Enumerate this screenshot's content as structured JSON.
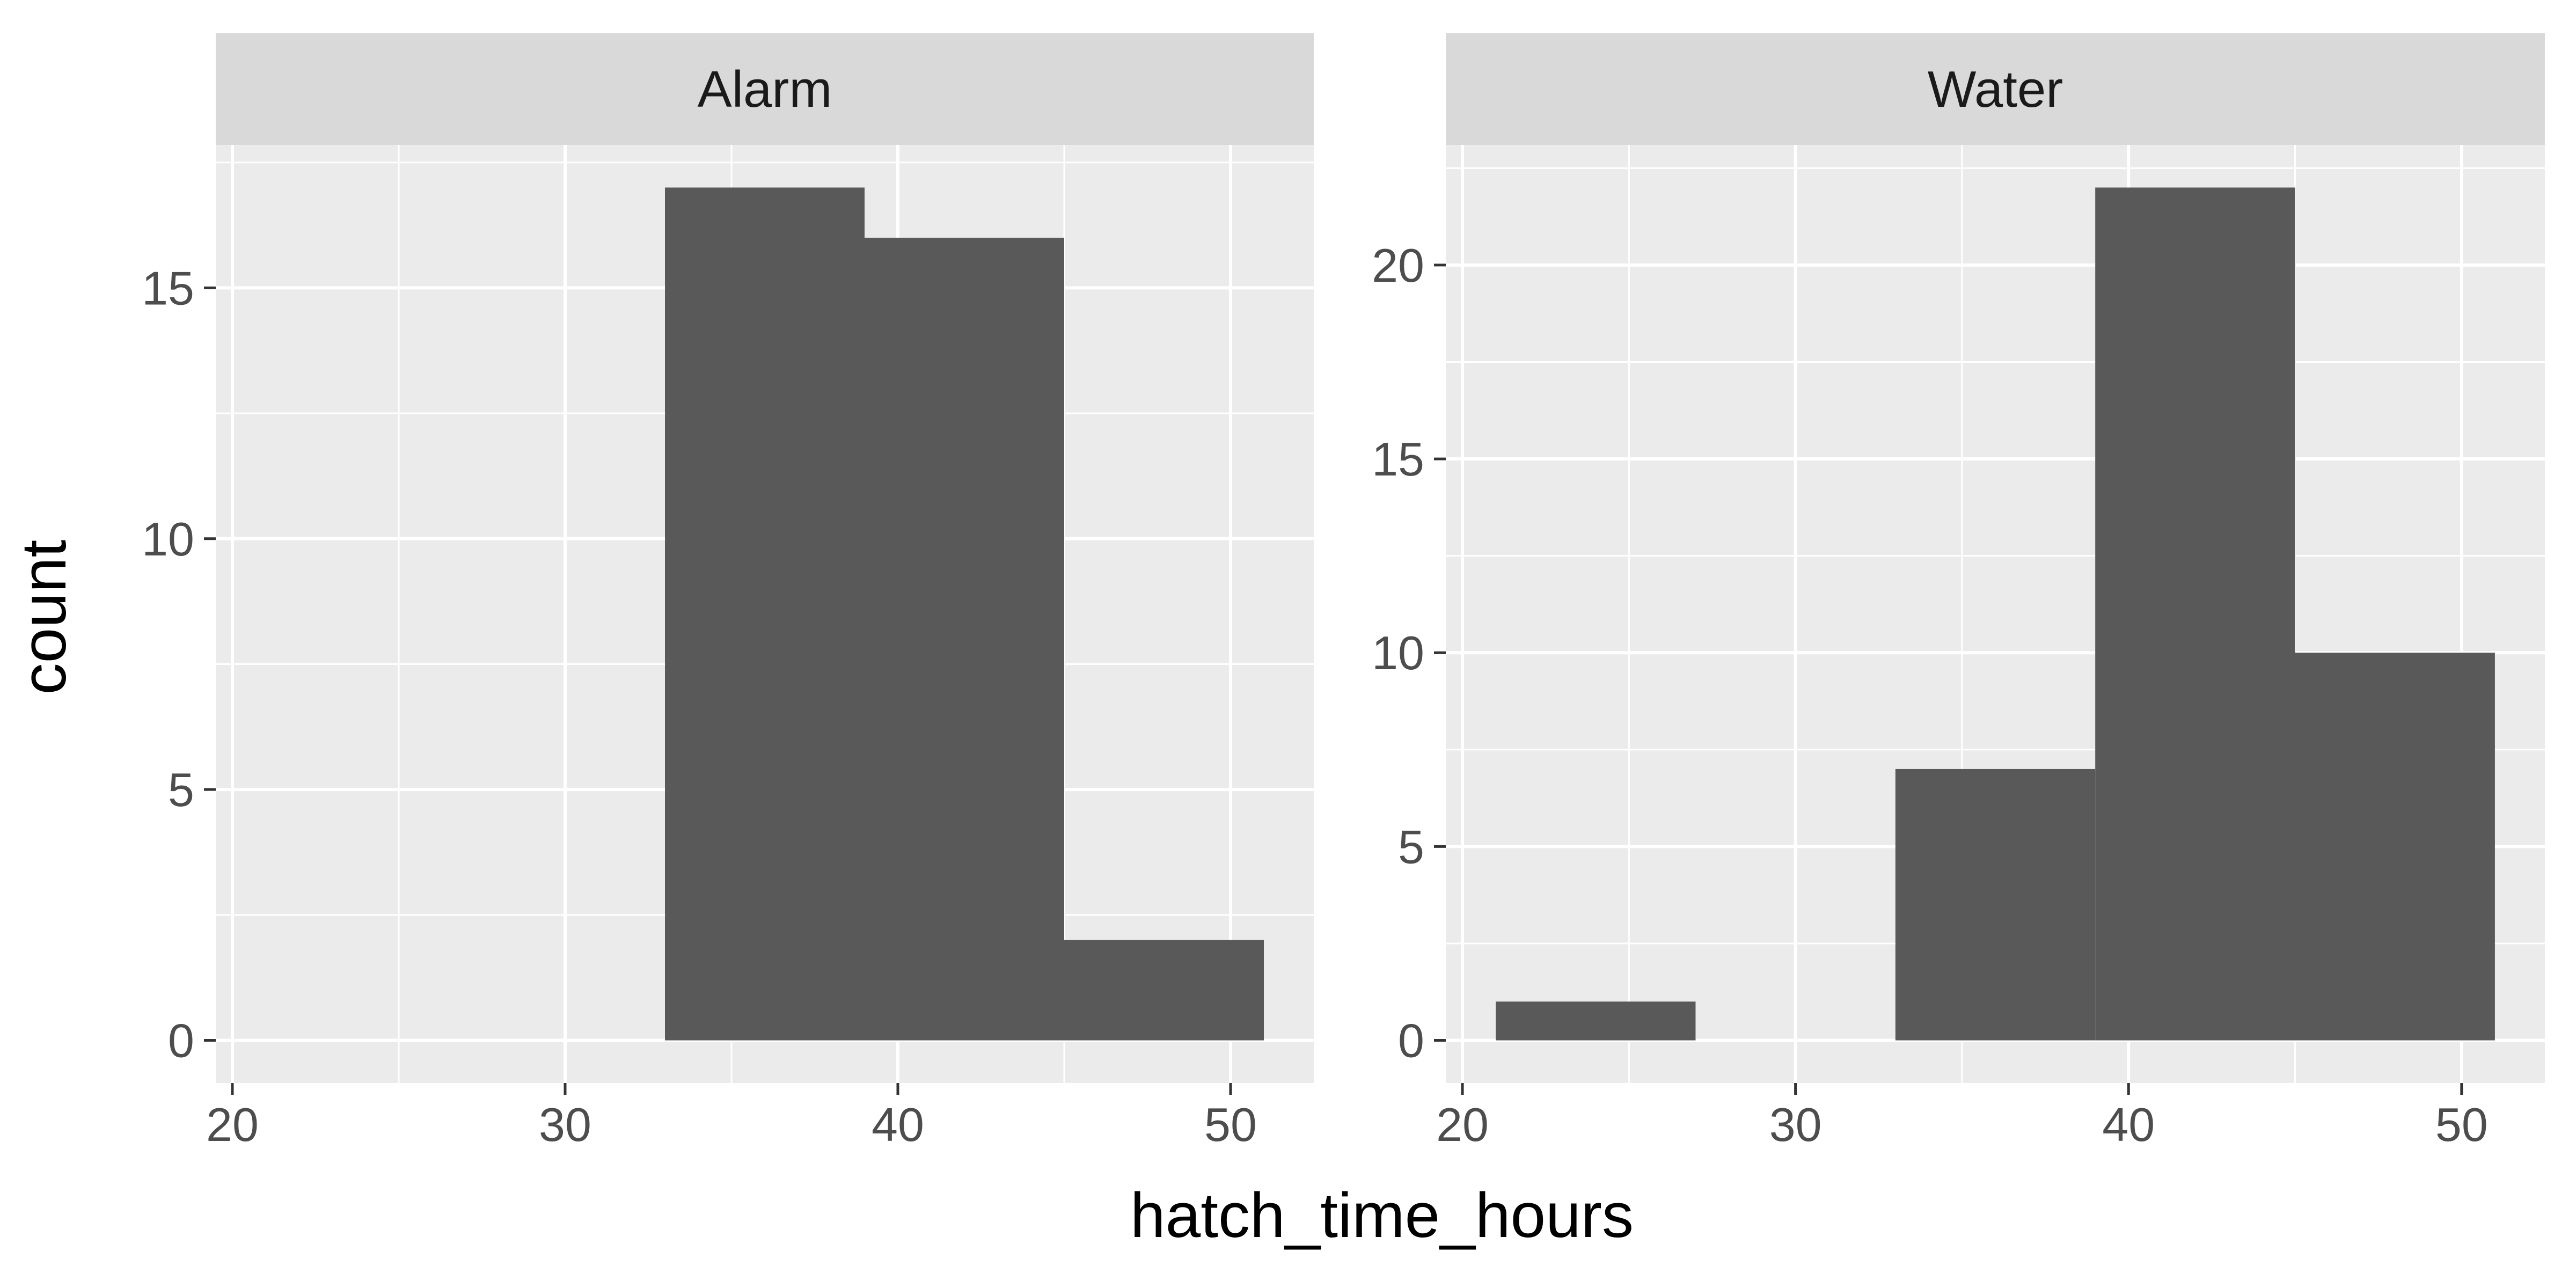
{
  "chart_data": {
    "type": "bar",
    "xlabel": "hatch_time_hours",
    "ylabel": "count",
    "bin_width": 6,
    "colors": {
      "panel_background": "#ebebeb",
      "grid_line": "#ffffff",
      "bar_fill": "#595959",
      "strip_background": "#d9d9d9",
      "tick_mark": "#333333"
    },
    "panels": [
      {
        "label": "Alarm",
        "xlim": [
          19.5,
          52.5
        ],
        "ylim": [
          -0.85,
          17.85
        ],
        "x_ticks": [
          20,
          30,
          40,
          50
        ],
        "x_tick_labels": [
          "20",
          "30",
          "40",
          "50"
        ],
        "y_ticks": [
          0,
          5,
          10,
          15
        ],
        "y_tick_labels": [
          "0",
          "5",
          "10",
          "15"
        ],
        "bins": [
          {
            "x0": 33,
            "x1": 39,
            "count": 17
          },
          {
            "x0": 39,
            "x1": 45,
            "count": 16
          },
          {
            "x0": 45,
            "x1": 51,
            "count": 2
          }
        ]
      },
      {
        "label": "Water",
        "xlim": [
          19.5,
          52.5
        ],
        "ylim": [
          -1.1,
          23.1
        ],
        "x_ticks": [
          20,
          30,
          40,
          50
        ],
        "x_tick_labels": [
          "20",
          "30",
          "40",
          "50"
        ],
        "y_ticks": [
          0,
          5,
          10,
          15,
          20
        ],
        "y_tick_labels": [
          "0",
          "5",
          "10",
          "15",
          "20"
        ],
        "bins": [
          {
            "x0": 21,
            "x1": 27,
            "count": 1
          },
          {
            "x0": 33,
            "x1": 39,
            "count": 7
          },
          {
            "x0": 39,
            "x1": 45,
            "count": 22
          },
          {
            "x0": 45,
            "x1": 51,
            "count": 10
          }
        ]
      }
    ]
  }
}
